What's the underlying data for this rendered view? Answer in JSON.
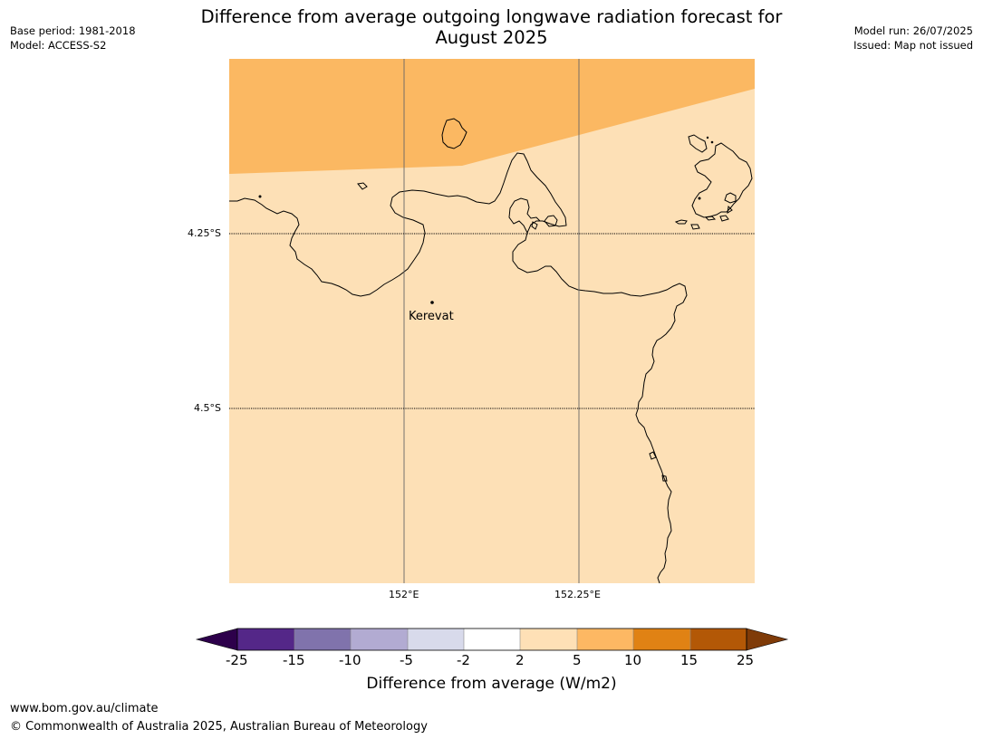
{
  "title": {
    "line1": "Difference from average outgoing longwave radiation forecast for",
    "line2": "August 2025"
  },
  "meta_left": {
    "base_period": "Base period: 1981-2018",
    "model": "Model: ACCESS-S2"
  },
  "meta_right": {
    "model_run": "Model run: 26/07/2025",
    "issued": "Issued: Map not issued"
  },
  "map": {
    "location": "Kerevat",
    "lat_ticks": [
      "4.25°S",
      "4.5°S"
    ],
    "lon_ticks": [
      "152°E",
      "152.25°E"
    ],
    "colors": {
      "high_anomaly": "#fbb862",
      "low_anomaly": "#fde0b6",
      "coast": "#000000"
    }
  },
  "colorbar": {
    "label": "Difference from average (W/m2)",
    "ticks": [
      "-25",
      "-15",
      "-10",
      "-5",
      "-2",
      "2",
      "5",
      "10",
      "15",
      "25"
    ],
    "colors": [
      "#2d004b",
      "#542788",
      "#8073ac",
      "#b2abd2",
      "#d8daeb",
      "#ffffff",
      "#fee0b6",
      "#fdb863",
      "#e08214",
      "#b35806",
      "#7f3b08"
    ]
  },
  "footer": {
    "url": "www.bom.gov.au/climate",
    "copyright": "© Commonwealth of Australia 2025, Australian Bureau of Meteorology"
  }
}
